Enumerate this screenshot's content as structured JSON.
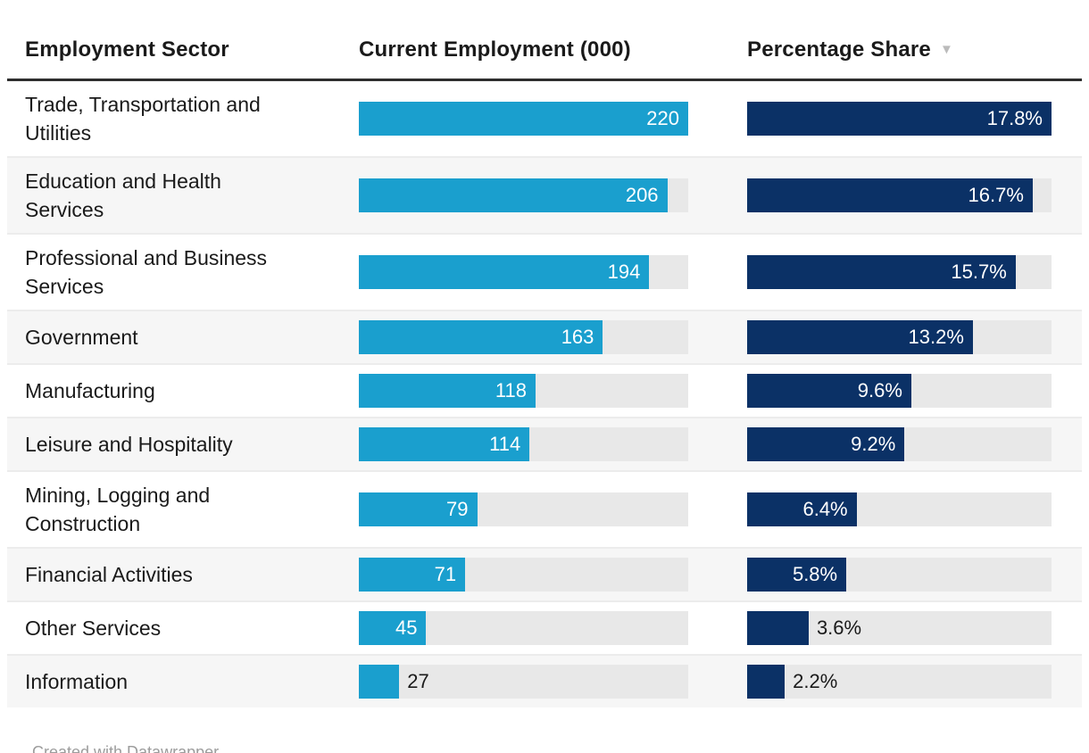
{
  "colors": {
    "employment_bar": "#1A9FCE",
    "share_bar": "#0B3166",
    "bar_track": "#E8E8E8",
    "alt_row_bg": "#F6F6F6",
    "header_rule": "#2E2E2E",
    "text": "#1A1A1A",
    "footer_text": "#9C9C9C",
    "sort_arrow": "#BBBBBB"
  },
  "table": {
    "columns": [
      {
        "label": "Employment Sector"
      },
      {
        "label": "Current Employment (000)"
      },
      {
        "label": "Percentage Share",
        "sort_indicator": "▼"
      }
    ],
    "rows": [
      {
        "sector": "Trade, Transportation and Utilities",
        "employment": 220,
        "employment_label": "220",
        "share": 17.8,
        "share_label": "17.8%"
      },
      {
        "sector": "Education and Health Services",
        "employment": 206,
        "employment_label": "206",
        "share": 16.7,
        "share_label": "16.7%"
      },
      {
        "sector": "Professional and Business Services",
        "employment": 194,
        "employment_label": "194",
        "share": 15.7,
        "share_label": "15.7%"
      },
      {
        "sector": "Government",
        "employment": 163,
        "employment_label": "163",
        "share": 13.2,
        "share_label": "13.2%"
      },
      {
        "sector": "Manufacturing",
        "employment": 118,
        "employment_label": "118",
        "share": 9.6,
        "share_label": "9.6%"
      },
      {
        "sector": "Leisure and Hospitality",
        "employment": 114,
        "employment_label": "114",
        "share": 9.2,
        "share_label": "9.2%"
      },
      {
        "sector": "Mining, Logging and Construction",
        "employment": 79,
        "employment_label": "79",
        "share": 6.4,
        "share_label": "6.4%"
      },
      {
        "sector": "Financial Activities",
        "employment": 71,
        "employment_label": "71",
        "share": 5.8,
        "share_label": "5.8%"
      },
      {
        "sector": "Other Services",
        "employment": 45,
        "employment_label": "45",
        "share": 3.6,
        "share_label": "3.6%"
      },
      {
        "sector": "Information",
        "employment": 27,
        "employment_label": "27",
        "share": 2.2,
        "share_label": "2.2%"
      }
    ]
  },
  "chart_data": {
    "type": "table",
    "subtype": "bar-columns",
    "categories": [
      "Trade, Transportation and Utilities",
      "Education and Health Services",
      "Professional and Business Services",
      "Government",
      "Manufacturing",
      "Leisure and Hospitality",
      "Mining, Logging and Construction",
      "Financial Activities",
      "Other Services",
      "Information"
    ],
    "series": [
      {
        "name": "Current Employment (000)",
        "values": [
          220,
          206,
          194,
          163,
          118,
          114,
          79,
          71,
          45,
          27
        ],
        "bar_scale_max": 220
      },
      {
        "name": "Percentage Share",
        "values": [
          17.8,
          16.7,
          15.7,
          13.2,
          9.6,
          9.2,
          6.4,
          5.8,
          3.6,
          2.2
        ],
        "unit": "%",
        "bar_scale_max": 17.8
      }
    ],
    "title": "",
    "sort": {
      "column": "Percentage Share",
      "direction": "desc"
    },
    "legend_position": "none",
    "grid": false
  },
  "footer": {
    "credit": "Created with Datawrapper"
  }
}
